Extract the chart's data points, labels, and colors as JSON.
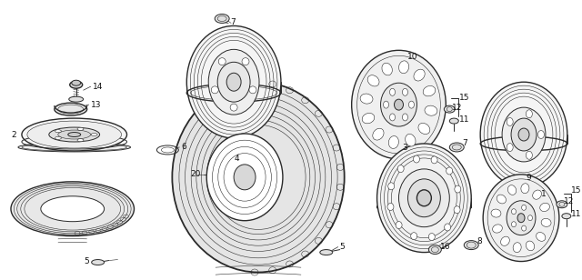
{
  "bg_color": "#ffffff",
  "line_color": "#2a2a2a",
  "fig_width": 6.4,
  "fig_height": 3.08,
  "dpi": 100
}
